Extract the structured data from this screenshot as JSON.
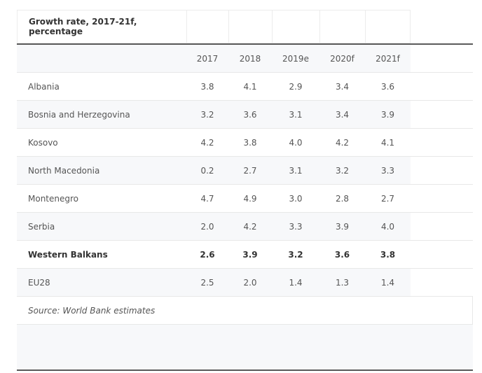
{
  "table": {
    "title": "Growth rate, 2017-21f, percentage",
    "columns": [
      "2017",
      "2018",
      "2019e",
      "2020f",
      "2021f"
    ],
    "rows": [
      {
        "label": "Albania",
        "values": [
          "3.8",
          "4.1",
          "2.9",
          "3.4",
          "3.6"
        ]
      },
      {
        "label": "Bosnia and Herzegovina",
        "values": [
          "3.2",
          "3.6",
          "3.1",
          "3.4",
          "3.9"
        ]
      },
      {
        "label": "Kosovo",
        "values": [
          "4.2",
          "3.8",
          "4.0",
          "4.2",
          "4.1"
        ]
      },
      {
        "label": "North Macedonia",
        "values": [
          "0.2",
          "2.7",
          "3.1",
          "3.2",
          "3.3"
        ]
      },
      {
        "label": "Montenegro",
        "values": [
          "4.7",
          "4.9",
          "3.0",
          "2.8",
          "2.7"
        ]
      },
      {
        "label": "Serbia",
        "values": [
          "2.0",
          "4.2",
          "3.3",
          "3.9",
          "4.0"
        ]
      },
      {
        "label": "Western Balkans",
        "values": [
          "2.6",
          "3.9",
          "3.2",
          "3.6",
          "3.8"
        ]
      },
      {
        "label": "EU28",
        "values": [
          "2.5",
          "2.0",
          "1.4",
          "1.3",
          "1.4"
        ]
      }
    ],
    "source": "Source: World Bank estimates"
  }
}
